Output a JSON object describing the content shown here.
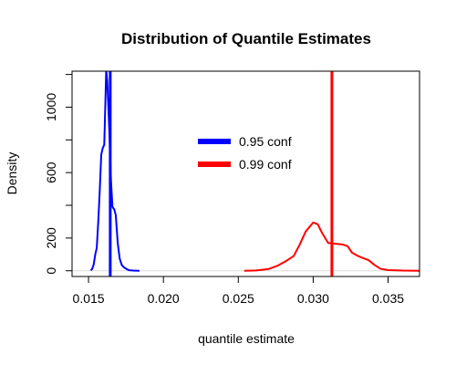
{
  "chart_data": {
    "type": "line",
    "title": "Distribution of Quantile Estimates",
    "xlabel": "quantile estimate",
    "ylabel": "Density",
    "xlim": [
      0.0139,
      0.0371
    ],
    "ylim": [
      -35,
      1220
    ],
    "x_ticks": [
      0.015,
      0.02,
      0.025,
      0.03,
      0.035
    ],
    "x_tick_labels": [
      "0.015",
      "0.020",
      "0.025",
      "0.030",
      "0.035"
    ],
    "y_ticks": [
      0,
      200,
      600,
      1000
    ],
    "y_tick_labels": [
      "0",
      "200",
      "600",
      "1000"
    ],
    "y_minor_ticks": [
      0,
      200,
      400,
      600,
      800,
      1000,
      1200
    ],
    "grid": false,
    "legend": {
      "position": "center",
      "entries": [
        {
          "label": "0.95 conf",
          "color": "#0000ff"
        },
        {
          "label": "0.99 conf",
          "color": "#ff0000"
        }
      ]
    },
    "series": [
      {
        "name": "0.95 conf",
        "color": "#0000ff",
        "points": [
          [
            0.01515,
            2
          ],
          [
            0.01525,
            12
          ],
          [
            0.01535,
            40
          ],
          [
            0.01545,
            100
          ],
          [
            0.01555,
            140
          ],
          [
            0.01565,
            300
          ],
          [
            0.01575,
            490
          ],
          [
            0.01585,
            710
          ],
          [
            0.01595,
            750
          ],
          [
            0.01605,
            770
          ],
          [
            0.01612,
            1010
          ],
          [
            0.01618,
            1230
          ],
          [
            0.01625,
            1160
          ],
          [
            0.01632,
            1010
          ],
          [
            0.0164,
            830
          ],
          [
            0.0165,
            550
          ],
          [
            0.0166,
            390
          ],
          [
            0.01672,
            375
          ],
          [
            0.01682,
            340
          ],
          [
            0.01695,
            170
          ],
          [
            0.01708,
            75
          ],
          [
            0.01722,
            35
          ],
          [
            0.01738,
            20
          ],
          [
            0.01755,
            10
          ],
          [
            0.01772,
            3
          ],
          [
            0.018,
            1
          ],
          [
            0.0184,
            0
          ]
        ]
      },
      {
        "name": "0.99 conf",
        "color": "#ff0000",
        "points": [
          [
            0.0254,
            0
          ],
          [
            0.0262,
            2
          ],
          [
            0.027,
            10
          ],
          [
            0.0276,
            30
          ],
          [
            0.0282,
            60
          ],
          [
            0.0287,
            90
          ],
          [
            0.0291,
            160
          ],
          [
            0.0295,
            240
          ],
          [
            0.03,
            295
          ],
          [
            0.0303,
            285
          ],
          [
            0.0306,
            230
          ],
          [
            0.031,
            170
          ],
          [
            0.0315,
            165
          ],
          [
            0.032,
            160
          ],
          [
            0.0323,
            150
          ],
          [
            0.0326,
            110
          ],
          [
            0.033,
            90
          ],
          [
            0.0334,
            75
          ],
          [
            0.0337,
            65
          ],
          [
            0.0341,
            35
          ],
          [
            0.0345,
            12
          ],
          [
            0.035,
            4
          ],
          [
            0.036,
            1
          ],
          [
            0.0371,
            0
          ]
        ]
      }
    ],
    "vlines": [
      {
        "x": 0.01645,
        "color": "#0000ff"
      },
      {
        "x": 0.03125,
        "color": "#ff0000"
      }
    ]
  }
}
